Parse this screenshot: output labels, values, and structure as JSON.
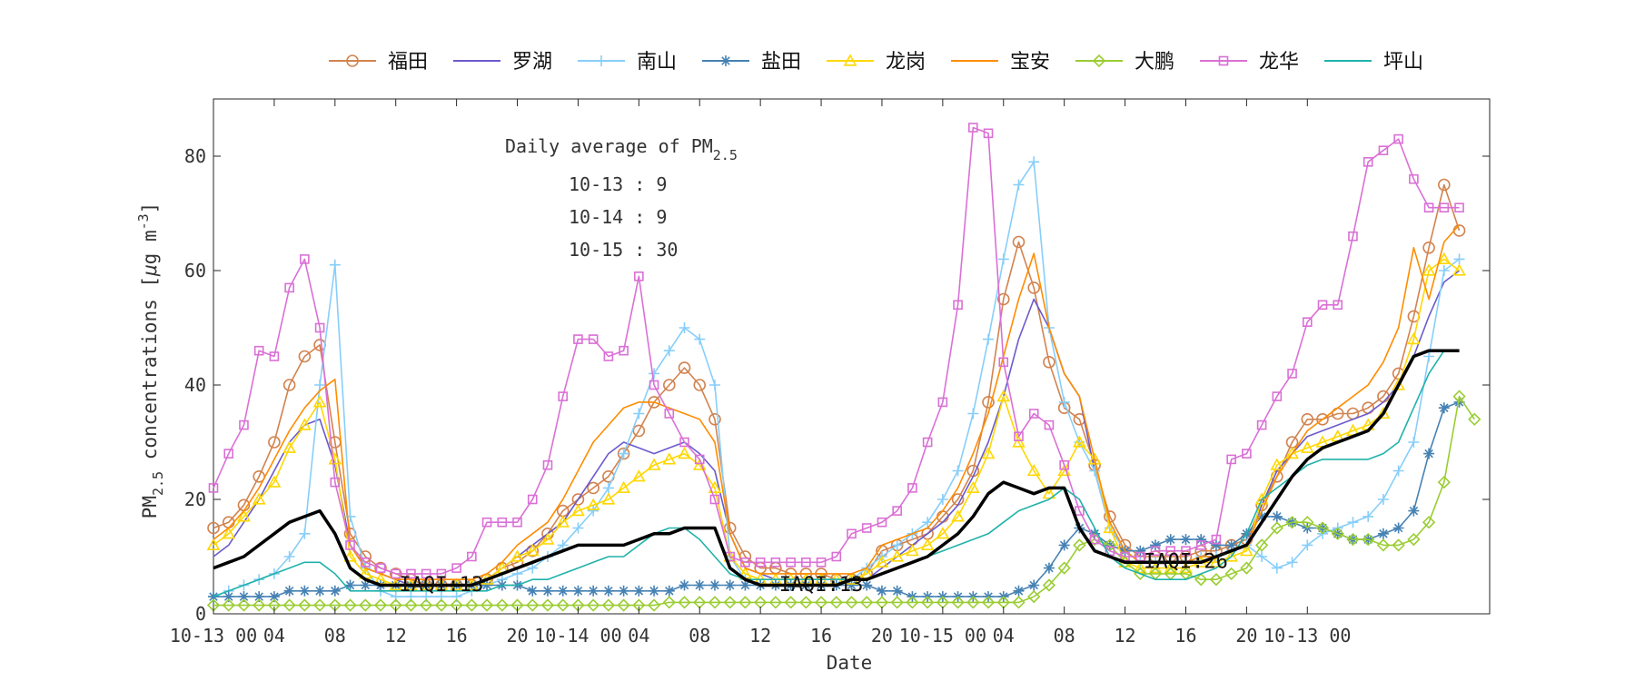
{
  "chart_data": {
    "type": "line",
    "xlabel": "Date",
    "ylabel_main": "PM",
    "ylabel_sub": "2.5",
    "ylabel_rest": " concentrations [",
    "ylabel_mu": "μ",
    "ylabel_unit": "g m",
    "ylabel_sup": "-3",
    "ylabel_end": "]",
    "ylim": [
      0,
      90
    ],
    "yticks": [
      0,
      20,
      40,
      60,
      80
    ],
    "xlim": [
      0,
      84
    ],
    "xticks": [
      {
        "x": 0,
        "label": "10-13 00"
      },
      {
        "x": 4,
        "label": "04"
      },
      {
        "x": 8,
        "label": "08"
      },
      {
        "x": 12,
        "label": "12"
      },
      {
        "x": 16,
        "label": "16"
      },
      {
        "x": 20,
        "label": "20"
      },
      {
        "x": 24,
        "label": "10-14 00"
      },
      {
        "x": 28,
        "label": "04"
      },
      {
        "x": 32,
        "label": "08"
      },
      {
        "x": 36,
        "label": "12"
      },
      {
        "x": 40,
        "label": "16"
      },
      {
        "x": 44,
        "label": "20"
      },
      {
        "x": 48,
        "label": "10-15 00"
      },
      {
        "x": 52,
        "label": "04"
      },
      {
        "x": 56,
        "label": "08"
      },
      {
        "x": 60,
        "label": "12"
      },
      {
        "x": 64,
        "label": "16"
      },
      {
        "x": 68,
        "label": "20"
      },
      {
        "x": 72,
        "label": "10-13 00"
      }
    ],
    "legend_position": "top",
    "grid": false,
    "annotation": {
      "title_main": "Daily average of PM",
      "title_sub": "2.5",
      "lines": [
        "10-13 : 9",
        "10-14 : 9",
        "10-15 : 30"
      ]
    },
    "iaqi_labels": [
      {
        "x": 15,
        "y": 4,
        "text": "IAQI:13"
      },
      {
        "x": 40,
        "y": 4,
        "text": "IAQI:13"
      },
      {
        "x": 64,
        "y": 8,
        "text": "IAQI:26"
      }
    ],
    "series": [
      {
        "name": "福田",
        "color": "#D2834F",
        "marker": "circle",
        "values": [
          15,
          16,
          19,
          24,
          30,
          40,
          45,
          47,
          30,
          14,
          10,
          8,
          7,
          6,
          5,
          5,
          5,
          5,
          6,
          8,
          9,
          11,
          14,
          18,
          20,
          22,
          24,
          28,
          32,
          37,
          40,
          43,
          40,
          34,
          15,
          10,
          8,
          8,
          7,
          7,
          7,
          6,
          6,
          7,
          11,
          12,
          13,
          14,
          17,
          20,
          25,
          37,
          55,
          65,
          57,
          44,
          36,
          34,
          26,
          17,
          12,
          10,
          10,
          10,
          10,
          11,
          11,
          12,
          13,
          19,
          24,
          30,
          34,
          34,
          35,
          35,
          36,
          38,
          42,
          52,
          64,
          75,
          67
        ]
      },
      {
        "name": "罗湖",
        "color": "#6A5ACD",
        "marker": "none",
        "values": [
          10,
          12,
          16,
          20,
          25,
          30,
          33,
          34,
          26,
          12,
          8,
          7,
          6,
          5,
          5,
          5,
          5,
          5,
          6,
          8,
          10,
          12,
          14,
          16,
          20,
          24,
          28,
          30,
          29,
          28,
          29,
          30,
          28,
          25,
          14,
          8,
          7,
          6,
          6,
          6,
          6,
          6,
          6,
          6,
          8,
          10,
          12,
          14,
          16,
          19,
          24,
          30,
          38,
          48,
          55,
          50,
          42,
          38,
          25,
          15,
          11,
          9,
          9,
          9,
          9,
          10,
          10,
          11,
          12,
          19,
          25,
          28,
          31,
          32,
          33,
          34,
          35,
          37,
          40,
          45,
          52,
          58,
          60
        ]
      },
      {
        "name": "南山",
        "color": "#87CEFA",
        "marker": "plus",
        "values": [
          3,
          4,
          5,
          6,
          7,
          10,
          14,
          40,
          61,
          17,
          8,
          4,
          3,
          3,
          3,
          3,
          3,
          4,
          5,
          6,
          7,
          8,
          10,
          12,
          15,
          18,
          22,
          28,
          35,
          42,
          46,
          50,
          48,
          40,
          10,
          6,
          5,
          5,
          5,
          5,
          5,
          5,
          6,
          8,
          10,
          12,
          14,
          16,
          20,
          25,
          35,
          48,
          62,
          75,
          79,
          50,
          37,
          30,
          25,
          15,
          11,
          9,
          9,
          9,
          9,
          10,
          10,
          11,
          12,
          10,
          8,
          9,
          12,
          14,
          15,
          16,
          17,
          20,
          25,
          30,
          45,
          60,
          62
        ]
      },
      {
        "name": "盐田",
        "color": "#4682B4",
        "marker": "asterisk",
        "values": [
          3,
          3,
          3,
          3,
          3,
          4,
          4,
          4,
          4,
          5,
          5,
          5,
          5,
          5,
          5,
          5,
          5,
          5,
          5,
          5,
          5,
          4,
          4,
          4,
          4,
          4,
          4,
          4,
          4,
          4,
          4,
          5,
          5,
          5,
          5,
          5,
          5,
          5,
          5,
          5,
          5,
          5,
          5,
          5,
          4,
          4,
          3,
          3,
          3,
          3,
          3,
          3,
          3,
          4,
          5,
          8,
          12,
          15,
          14,
          12,
          11,
          11,
          12,
          13,
          13,
          13,
          12,
          12,
          14,
          17,
          17,
          16,
          15,
          15,
          14,
          13,
          13,
          14,
          15,
          18,
          28,
          36,
          37
        ]
      },
      {
        "name": "龙岗",
        "color": "#FFD700",
        "marker": "triangle",
        "values": [
          12,
          14,
          17,
          20,
          23,
          29,
          33,
          37,
          27,
          10,
          7,
          6,
          5,
          5,
          5,
          5,
          5,
          5,
          6,
          8,
          10,
          11,
          13,
          16,
          18,
          19,
          20,
          22,
          24,
          26,
          27,
          28,
          26,
          22,
          10,
          7,
          6,
          6,
          6,
          6,
          6,
          6,
          6,
          7,
          9,
          10,
          11,
          12,
          14,
          17,
          22,
          28,
          38,
          30,
          25,
          21,
          25,
          30,
          27,
          15,
          9,
          8,
          8,
          8,
          8,
          9,
          9,
          10,
          11,
          20,
          26,
          28,
          29,
          30,
          31,
          32,
          33,
          35,
          40,
          48,
          60,
          62,
          60
        ]
      },
      {
        "name": "宝安",
        "color": "#FF8C00",
        "marker": "none",
        "values": [
          13,
          15,
          18,
          22,
          27,
          32,
          36,
          39,
          41,
          12,
          8,
          7,
          6,
          6,
          6,
          6,
          6,
          6,
          7,
          9,
          12,
          14,
          16,
          20,
          25,
          30,
          33,
          36,
          37,
          37,
          36,
          35,
          34,
          30,
          14,
          8,
          7,
          7,
          7,
          7,
          7,
          7,
          7,
          8,
          12,
          13,
          14,
          15,
          18,
          22,
          28,
          35,
          45,
          55,
          63,
          50,
          42,
          38,
          27,
          16,
          11,
          9,
          9,
          9,
          9,
          10,
          10,
          11,
          12,
          18,
          24,
          28,
          32,
          34,
          36,
          38,
          40,
          44,
          50,
          64,
          55,
          65,
          68
        ]
      },
      {
        "name": "大鹏",
        "color": "#9ACD32",
        "marker": "diamond",
        "values": [
          1.5,
          1.5,
          1.5,
          1.5,
          1.5,
          1.5,
          1.5,
          1.5,
          1.5,
          1.5,
          1.5,
          1.5,
          1.5,
          1.5,
          1.5,
          1.5,
          1.5,
          1.5,
          1.5,
          1.5,
          1.5,
          1.5,
          1.5,
          1.5,
          1.5,
          1.5,
          1.5,
          1.5,
          1.5,
          1.5,
          2,
          2,
          2,
          2,
          2,
          2,
          2,
          2,
          2,
          2,
          2,
          2,
          2,
          2,
          2,
          2,
          2,
          2,
          2,
          2,
          2,
          2,
          2,
          2,
          3,
          5,
          8,
          12,
          13,
          12,
          9,
          7,
          7,
          7,
          7,
          6,
          6,
          7,
          8,
          12,
          15,
          16,
          16,
          15,
          14,
          13,
          13,
          12,
          12,
          13,
          16,
          23,
          38,
          34
        ]
      },
      {
        "name": "龙华",
        "color": "#DA70D6",
        "marker": "square",
        "values": [
          22,
          28,
          33,
          46,
          45,
          57,
          62,
          50,
          23,
          12,
          9,
          8,
          7,
          7,
          7,
          7,
          8,
          10,
          16,
          16,
          16,
          20,
          26,
          38,
          48,
          48,
          45,
          46,
          59,
          40,
          35,
          30,
          27,
          20,
          10,
          9,
          9,
          9,
          9,
          9,
          9,
          10,
          14,
          15,
          16,
          18,
          22,
          30,
          37,
          54,
          85,
          84,
          44,
          31,
          35,
          33,
          26,
          18,
          13,
          11,
          10,
          10,
          11,
          11,
          11,
          12,
          13,
          27,
          28,
          33,
          38,
          42,
          51,
          54,
          54,
          66,
          79,
          81,
          83,
          76,
          71,
          71,
          71
        ]
      },
      {
        "name": "坪山",
        "color": "#20B2AA",
        "marker": "none",
        "values": [
          3,
          4,
          5,
          6,
          7,
          8,
          9,
          9,
          7,
          4,
          4,
          4,
          4,
          4,
          4,
          4,
          4,
          4,
          4,
          5,
          5,
          6,
          6,
          7,
          8,
          9,
          10,
          10,
          12,
          14,
          15,
          15,
          13,
          10,
          7,
          6,
          6,
          6,
          6,
          6,
          6,
          6,
          6,
          6,
          7,
          8,
          9,
          10,
          11,
          12,
          13,
          14,
          16,
          18,
          19,
          20,
          22,
          20,
          15,
          10,
          8,
          7,
          6,
          6,
          6,
          7,
          8,
          10,
          14,
          20,
          22,
          24,
          26,
          27,
          27,
          27,
          27,
          28,
          30,
          36,
          42,
          46,
          46
        ]
      },
      {
        "name": "",
        "color": "#000000",
        "marker": "none",
        "width": 3.5,
        "values": [
          8,
          9,
          10,
          12,
          14,
          16,
          17,
          18,
          14,
          8,
          6,
          5,
          5,
          5,
          5,
          5,
          5,
          5,
          6,
          7,
          8,
          9,
          10,
          11,
          12,
          12,
          12,
          12,
          13,
          14,
          14,
          15,
          15,
          15,
          8,
          6,
          5,
          5,
          5,
          5,
          5,
          5,
          6,
          6,
          7,
          8,
          9,
          10,
          12,
          14,
          17,
          21,
          23,
          22,
          21,
          22,
          22,
          15,
          11,
          10,
          9,
          9,
          9,
          9,
          9,
          9,
          10,
          11,
          12,
          16,
          20,
          24,
          27,
          29,
          30,
          31,
          32,
          35,
          40,
          45,
          46,
          46,
          46
        ]
      }
    ]
  }
}
